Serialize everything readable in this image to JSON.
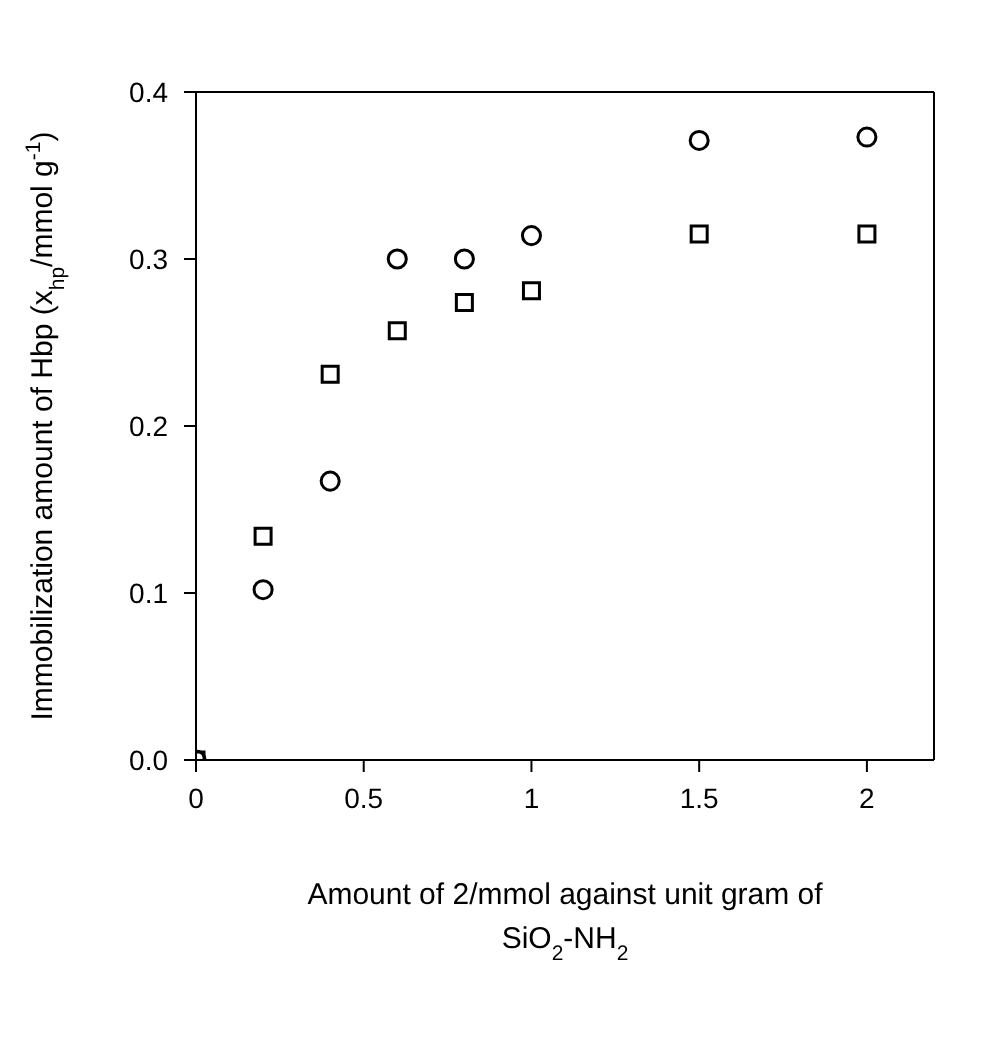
{
  "chart_data": {
    "type": "scatter",
    "xlabel": "Amount of 2/mmol against unit gram of SiO$_{2}$-NH$_{2}$",
    "ylabel": "Immobilization amount of Hbp (x$_{hp}$/mmol g$^{-1}$)",
    "x": [
      0,
      0.2,
      0.4,
      0.6,
      0.8,
      1,
      1.5,
      2
    ],
    "series": [
      {
        "color": "#000000",
        "marker": "circle",
        "values": [
          0,
          0.102,
          0.167,
          0.3,
          0.3,
          0.314,
          0.371,
          0.373
        ]
      },
      {
        "color": "#000000",
        "marker": "square",
        "values": [
          0,
          0.134,
          0.231,
          0.257,
          0.274,
          0.281,
          0.315,
          0.315
        ]
      }
    ],
    "xlim": [
      0,
      2.2
    ],
    "xticks": [
      0,
      0.5,
      1,
      1.5,
      2
    ],
    "ylim": [
      0,
      0.4
    ],
    "yticks": [
      {
        "value": 0,
        "label": "0.0"
      },
      {
        "value": 0.1,
        "label": "0.1"
      },
      {
        "value": 0.2,
        "label": "0.2"
      },
      {
        "value": 0.3,
        "label": "0.3"
      },
      {
        "value": 0.4,
        "label": "0.4"
      }
    ],
    "legend": false
  }
}
